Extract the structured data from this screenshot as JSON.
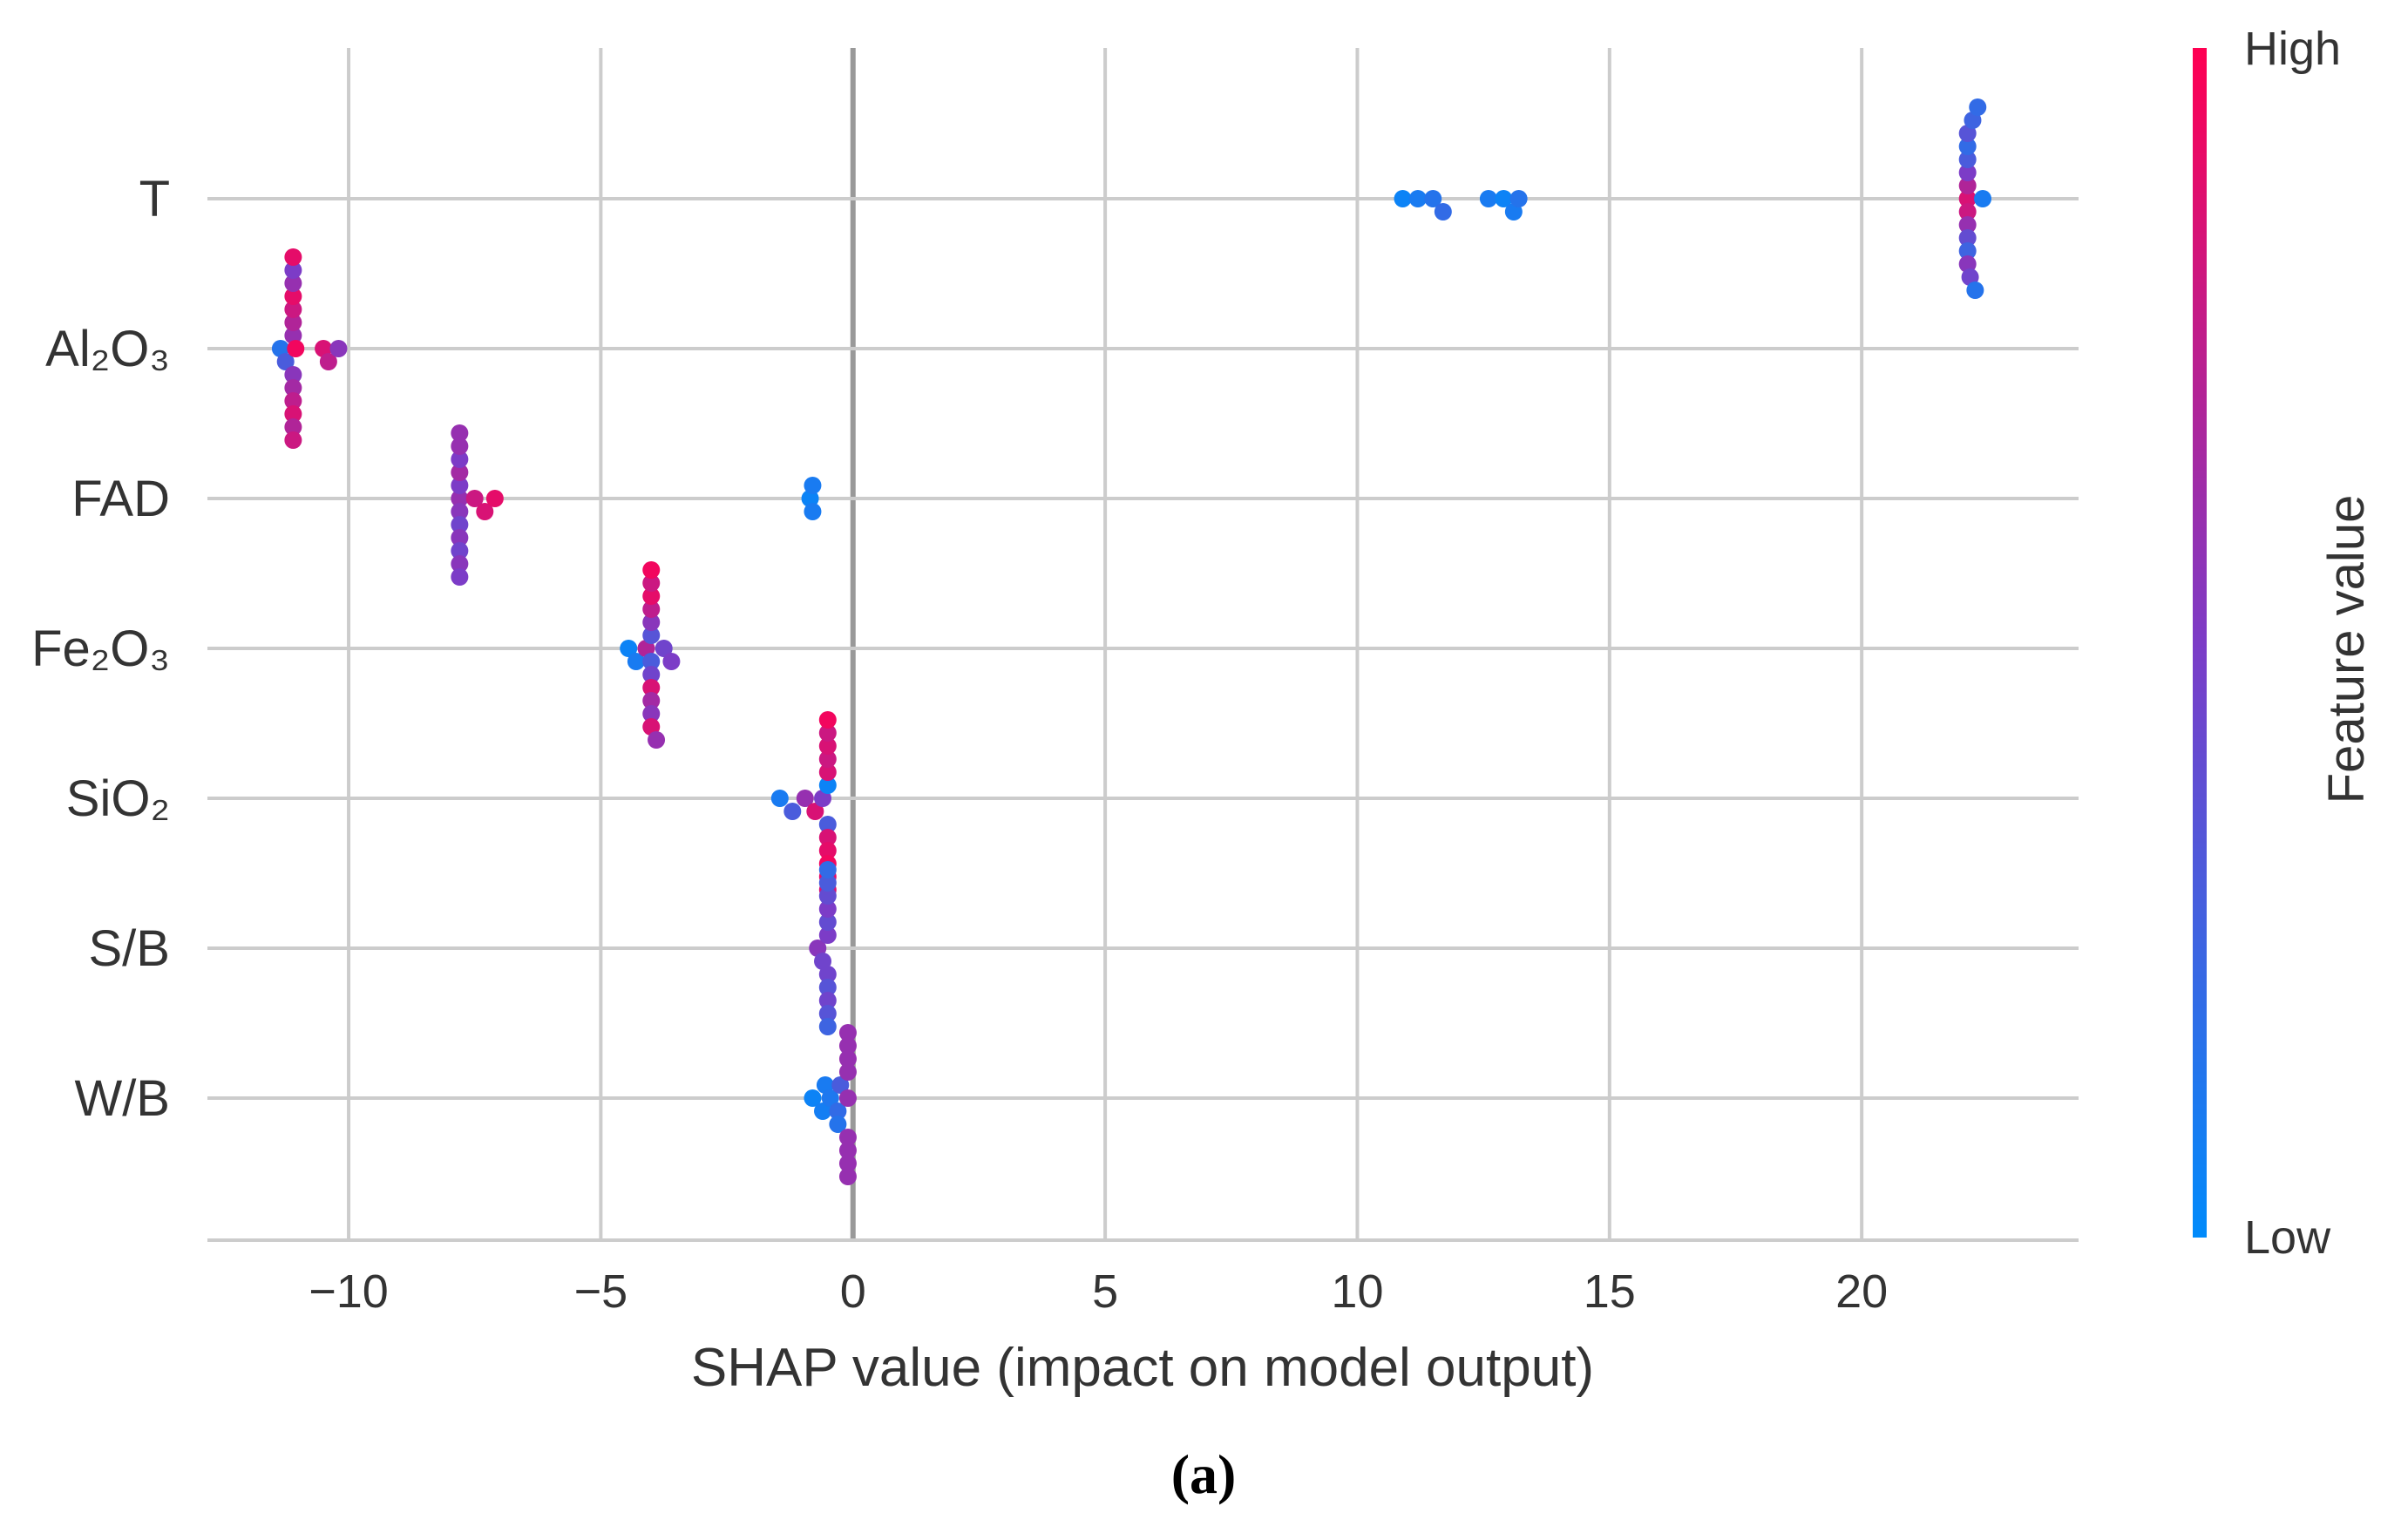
{
  "chart_data": {
    "type": "scatter",
    "subtype": "shap-beeswarm-summary",
    "title": "",
    "xlabel": "SHAP value (impact on model output)",
    "ylabel": "",
    "xlim": [
      -12.8,
      24.3
    ],
    "xticks": [
      -10,
      -5,
      0,
      5,
      10,
      15,
      20
    ],
    "xtick_labels": [
      "−10",
      "−5",
      "0",
      "5",
      "10",
      "15",
      "20"
    ],
    "grid": true,
    "subcaption": "(a)",
    "colorbar": {
      "label": "Feature value",
      "high_label": "High",
      "low_label": "Low",
      "high_color": "#ff0052",
      "mid_color": "#7c3cc7",
      "low_color": "#008bfb"
    },
    "features": [
      {
        "name": "T",
        "points": [
          [
            10.9,
            0.05
          ],
          [
            11.2,
            0.1
          ],
          [
            11.5,
            0.15
          ],
          [
            11.7,
            0.2
          ],
          [
            12.6,
            0.1
          ],
          [
            12.9,
            0.05
          ],
          [
            13.1,
            0.1
          ],
          [
            13.2,
            0.15
          ],
          [
            22.1,
            0.85
          ],
          [
            22.1,
            0.8
          ],
          [
            22.1,
            0.7
          ],
          [
            22.1,
            0.6
          ],
          [
            22.1,
            0.5
          ],
          [
            22.1,
            0.4
          ],
          [
            22.1,
            0.3
          ],
          [
            22.1,
            0.25
          ],
          [
            22.1,
            0.2
          ],
          [
            22.1,
            0.55
          ],
          [
            22.1,
            0.35
          ],
          [
            22.15,
            0.45
          ],
          [
            22.2,
            0.25
          ],
          [
            22.25,
            0.15
          ],
          [
            22.3,
            0.2
          ],
          [
            22.4,
            0.1
          ]
        ]
      },
      {
        "name": "Al₂O₃",
        "points": [
          [
            -11.1,
            0.6
          ],
          [
            -11.1,
            0.55
          ],
          [
            -11.1,
            0.7
          ],
          [
            -11.1,
            0.65
          ],
          [
            -11.1,
            0.8
          ],
          [
            -11.1,
            0.75
          ],
          [
            -11.1,
            0.9
          ],
          [
            -11.1,
            0.85
          ],
          [
            -11.1,
            0.6
          ],
          [
            -11.1,
            0.7
          ],
          [
            -11.1,
            0.5
          ],
          [
            -11.1,
            0.8
          ],
          [
            -11.05,
            0.95
          ],
          [
            -11.1,
            0.9
          ],
          [
            -11.35,
            0.15
          ],
          [
            -11.25,
            0.3
          ],
          [
            -10.5,
            0.85
          ],
          [
            -10.4,
            0.75
          ],
          [
            -10.2,
            0.55
          ]
        ]
      },
      {
        "name": "FAD",
        "points": [
          [
            -7.8,
            0.6
          ],
          [
            -7.8,
            0.55
          ],
          [
            -7.8,
            0.5
          ],
          [
            -7.8,
            0.45
          ],
          [
            -7.8,
            0.65
          ],
          [
            -7.8,
            0.55
          ],
          [
            -7.8,
            0.5
          ],
          [
            -7.8,
            0.45
          ],
          [
            -7.8,
            0.6
          ],
          [
            -7.8,
            0.55
          ],
          [
            -7.8,
            0.6
          ],
          [
            -7.8,
            0.5
          ],
          [
            -7.5,
            0.8
          ],
          [
            -7.3,
            0.85
          ],
          [
            -7.1,
            0.9
          ],
          [
            -0.85,
            0.05
          ],
          [
            -0.8,
            0.1
          ],
          [
            -0.8,
            0.1
          ]
        ]
      },
      {
        "name": "Fe₂O₃",
        "points": [
          [
            -4.0,
            0.3
          ],
          [
            -4.0,
            0.35
          ],
          [
            -4.0,
            0.45
          ],
          [
            -4.0,
            0.55
          ],
          [
            -4.0,
            0.85
          ],
          [
            -4.0,
            0.75
          ],
          [
            -4.0,
            0.65
          ],
          [
            -4.0,
            0.9
          ],
          [
            -4.0,
            0.55
          ],
          [
            -4.0,
            0.8
          ],
          [
            -4.0,
            0.85
          ],
          [
            -4.0,
            0.95
          ],
          [
            -4.45,
            0.05
          ],
          [
            -4.3,
            0.1
          ],
          [
            -4.1,
            0.7
          ],
          [
            -3.9,
            0.6
          ],
          [
            -3.75,
            0.45
          ],
          [
            -3.6,
            0.5
          ]
        ]
      },
      {
        "name": "SiO₂",
        "points": [
          [
            -0.5,
            0.05
          ],
          [
            -0.5,
            0.3
          ],
          [
            -0.5,
            0.85
          ],
          [
            -0.5,
            0.85
          ],
          [
            -0.5,
            0.8
          ],
          [
            -0.5,
            0.9
          ],
          [
            -0.5,
            0.85
          ],
          [
            -0.5,
            0.95
          ],
          [
            -0.5,
            0.8
          ],
          [
            -0.5,
            0.9
          ],
          [
            -0.5,
            0.95
          ],
          [
            -0.5,
            0.85
          ],
          [
            -1.45,
            0.1
          ],
          [
            -1.2,
            0.3
          ],
          [
            -0.95,
            0.6
          ],
          [
            -0.75,
            0.85
          ],
          [
            -0.6,
            0.5
          ]
        ]
      },
      {
        "name": "S/B",
        "points": [
          [
            -0.5,
            0.5
          ],
          [
            -0.5,
            0.45
          ],
          [
            -0.5,
            0.4
          ],
          [
            -0.5,
            0.35
          ],
          [
            -0.5,
            0.5
          ],
          [
            -0.5,
            0.45
          ],
          [
            -0.5,
            0.4
          ],
          [
            -0.5,
            0.35
          ],
          [
            -0.5,
            0.3
          ],
          [
            -0.5,
            0.25
          ],
          [
            -0.5,
            0.2
          ],
          [
            -0.7,
            0.55
          ],
          [
            -0.6,
            0.45
          ]
        ]
      },
      {
        "name": "W/B",
        "points": [
          [
            -0.1,
            0.6
          ],
          [
            -0.1,
            0.6
          ],
          [
            -0.1,
            0.6
          ],
          [
            -0.1,
            0.6
          ],
          [
            -0.1,
            0.6
          ],
          [
            -0.1,
            0.6
          ],
          [
            -0.1,
            0.6
          ],
          [
            -0.1,
            0.6
          ],
          [
            -0.1,
            0.6
          ],
          [
            -0.3,
            0.2
          ],
          [
            -0.3,
            0.15
          ],
          [
            -0.25,
            0.3
          ],
          [
            -0.45,
            0.12
          ],
          [
            -0.55,
            0.1
          ],
          [
            -0.8,
            0.05
          ],
          [
            -0.6,
            0.08
          ]
        ]
      }
    ]
  }
}
